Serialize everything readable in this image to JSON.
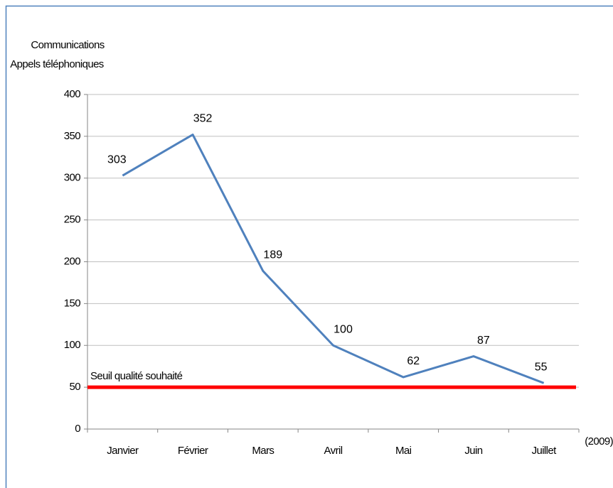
{
  "chart_data": {
    "type": "line",
    "y_label_lines": [
      "Communications",
      "Appels téléphoniques"
    ],
    "x_label": "(2009)",
    "categories": [
      "Janvier",
      "Février",
      "Mars",
      "Avril",
      "Mai",
      "Juin",
      "Juillet"
    ],
    "series": [
      {
        "name": "Communications",
        "color": "#4f81bd",
        "values": [
          303,
          352,
          189,
          100,
          62,
          87,
          55
        ]
      }
    ],
    "threshold": {
      "value": 50,
      "label": "Seuil qualité souhaité",
      "color": "#ff0000"
    },
    "ylim": [
      0,
      400
    ],
    "yticks": [
      0,
      50,
      100,
      150,
      200,
      250,
      300,
      350,
      400
    ],
    "grid": true
  }
}
